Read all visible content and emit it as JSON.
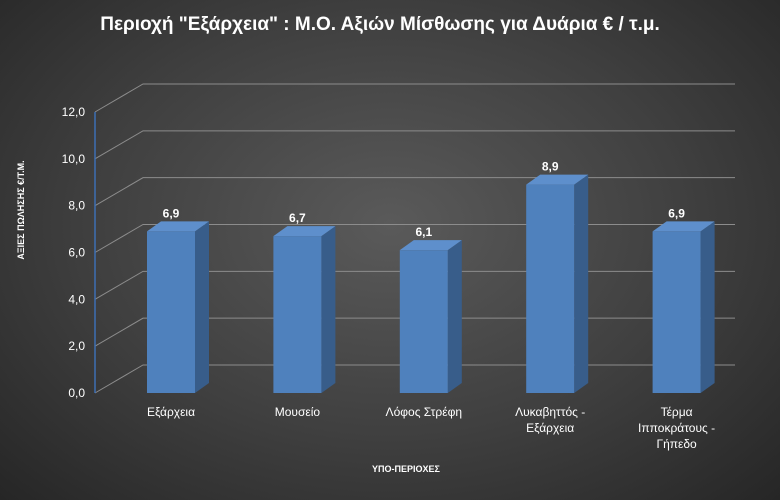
{
  "chart_data": {
    "type": "bar",
    "title": "Περιοχή \"Εξάρχεια\" : Μ.Ο. Αξιών Μίσθωσης για Δυάρια € / τ.μ.",
    "xlabel": "ΥΠΟ-ΠΕΡΙΟΧΕΣ",
    "ylabel": "ΑΞΙΕΣ ΠΩΛΗΣΗΣ €/Τ.Μ.",
    "categories": [
      [
        "Εξάρχεια"
      ],
      [
        "Μουσείο"
      ],
      [
        "Λόφος Στρέφη"
      ],
      [
        "Λυκαβηττός -",
        "Εξάρχεια"
      ],
      [
        "Τέρμα",
        "Ιπποκράτους -",
        "Γήπεδο"
      ]
    ],
    "values": [
      6.9,
      6.7,
      6.1,
      8.9,
      6.9
    ],
    "value_labels": [
      "6,9",
      "6,7",
      "6,1",
      "8,9",
      "6,9"
    ],
    "ylim": [
      0,
      12
    ],
    "yticks": [
      "0,0",
      "2,0",
      "4,0",
      "6,0",
      "8,0",
      "10,0",
      "12,0"
    ],
    "grid": true,
    "legend": "none",
    "style": "3d",
    "colors": {
      "bar_front": "#4f81bd",
      "bar_side": "#385d8a",
      "bar_top": "#5e8fcc",
      "grid": "#8c8c8c",
      "text": "#ffffff"
    }
  }
}
